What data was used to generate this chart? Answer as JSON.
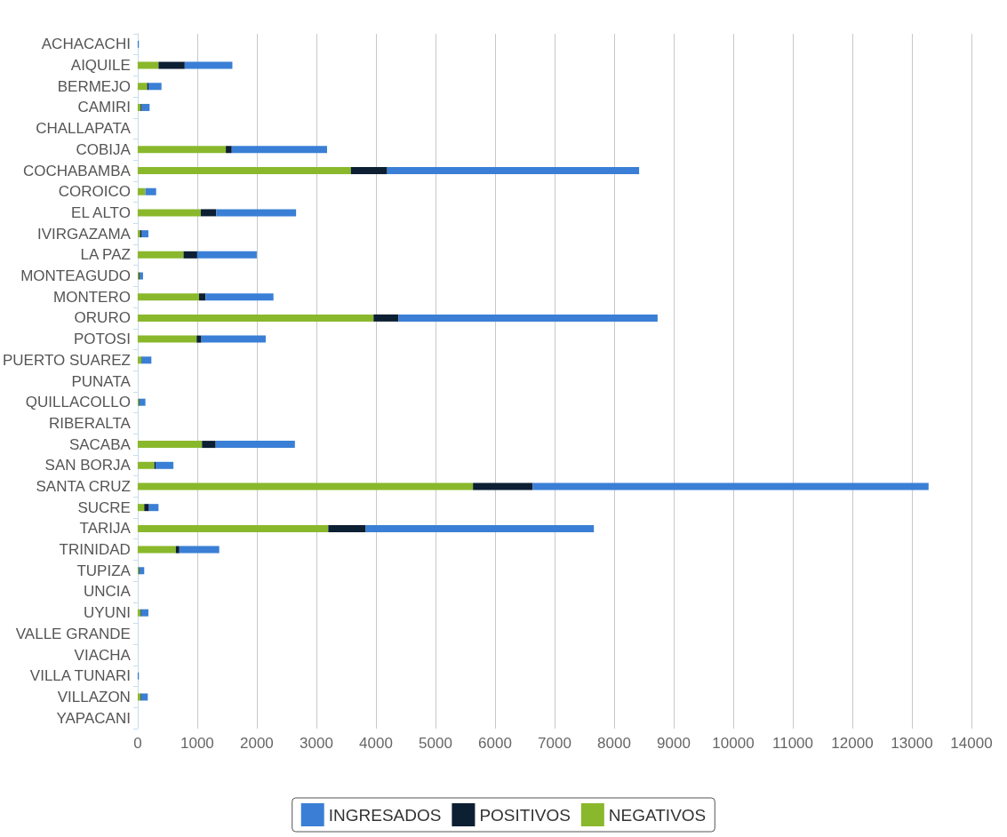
{
  "chart_data": {
    "type": "bar",
    "orientation": "horizontal",
    "stacked": true,
    "categories": [
      "ACHACACHI",
      "AIQUILE",
      "BERMEJO",
      "CAMIRI",
      "CHALLAPATA",
      "COBIJA",
      "COCHABAMBA",
      "COROICO",
      "EL ALTO",
      "IVIRGAZAMA",
      "LA PAZ",
      "MONTEAGUDO",
      "MONTERO",
      "ORURO",
      "POTOSI",
      "PUERTO SUAREZ",
      "PUNATA",
      "QUILLACOLLO",
      "RIBERALTA",
      "SACABA",
      "SAN BORJA",
      "SANTA CRUZ",
      "SUCRE",
      "TARIJA",
      "TRINIDAD",
      "TUPIZA",
      "UNCIA",
      "UYUNI",
      "VALLE GRANDE",
      "VIACHA",
      "VILLA TUNARI",
      "VILLAZON",
      "YAPACANI"
    ],
    "series": [
      {
        "name": "NEGATIVOS",
        "color": "#8ab82c",
        "values": [
          null,
          350,
          160,
          50,
          0,
          1480,
          3580,
          130,
          1060,
          40,
          770,
          20,
          1030,
          3960,
          990,
          60,
          0,
          20,
          0,
          1080,
          280,
          5630,
          110,
          3200,
          640,
          20,
          0,
          50,
          0,
          0,
          null,
          50,
          0
        ]
      },
      {
        "name": "POSITIVOS",
        "color": "#0d1f33",
        "values": [
          0,
          440,
          20,
          20,
          0,
          100,
          610,
          null,
          260,
          30,
          230,
          20,
          110,
          420,
          80,
          10,
          0,
          10,
          0,
          230,
          20,
          1000,
          80,
          630,
          60,
          10,
          0,
          10,
          0,
          0,
          0,
          10,
          0
        ]
      },
      {
        "name": "INGRESADOS",
        "color": "#3a7fd5",
        "values": [
          20,
          800,
          220,
          130,
          0,
          1600,
          4230,
          180,
          1340,
          110,
          1000,
          50,
          1140,
          4350,
          1080,
          160,
          0,
          100,
          0,
          1330,
          300,
          6650,
          160,
          3830,
          670,
          80,
          0,
          120,
          0,
          0,
          20,
          110,
          0
        ]
      }
    ],
    "xlim": [
      0,
      14000
    ],
    "xticks": [
      0,
      1000,
      2000,
      3000,
      4000,
      5000,
      6000,
      7000,
      8000,
      9000,
      10000,
      11000,
      12000,
      13000,
      14000
    ],
    "grid": "x",
    "legend": "bottom"
  }
}
